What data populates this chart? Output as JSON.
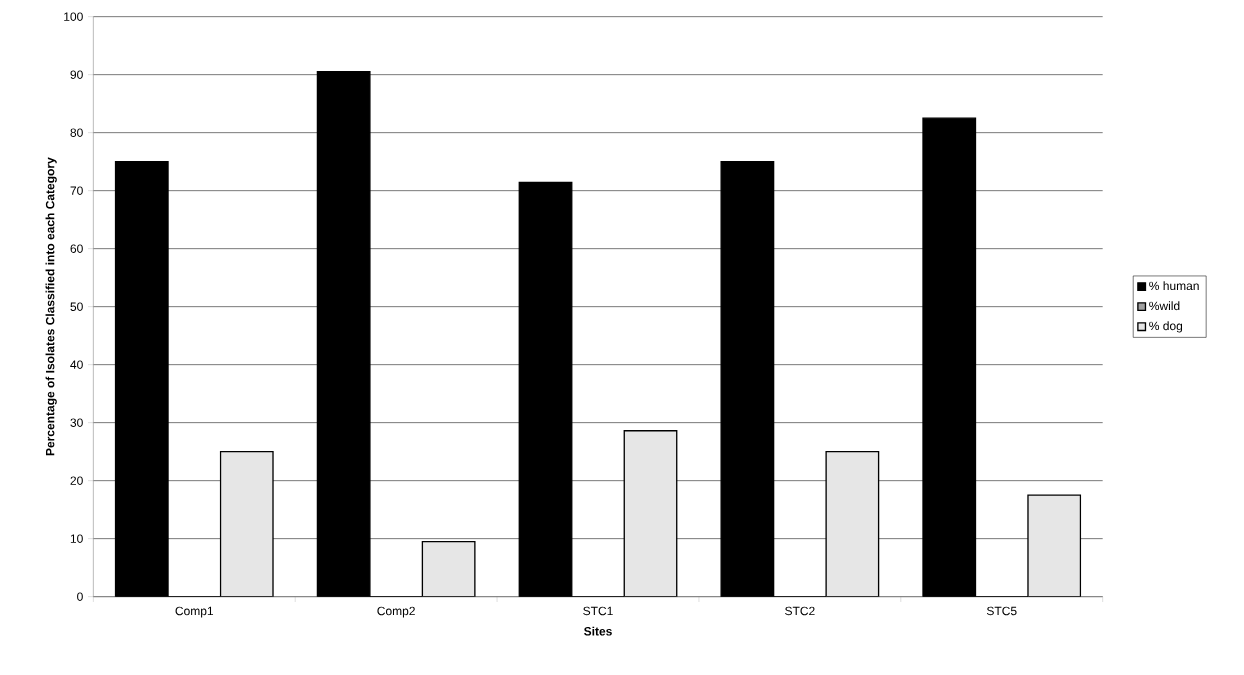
{
  "chart_data": {
    "type": "bar",
    "xlabel": "Sites",
    "ylabel": "Percentage of Isolates Classified into each Category",
    "categories": [
      "Comp1",
      "Comp2",
      "STC1",
      "STC2",
      "STC5"
    ],
    "series": [
      {
        "name": "% human",
        "color": "#000000",
        "values": [
          75,
          90.5,
          71.4,
          75,
          82.5
        ]
      },
      {
        "name": "%wild",
        "color": "#a0a0a0",
        "values": [
          0,
          0,
          0,
          0,
          0
        ]
      },
      {
        "name": "% dog",
        "color": "#e6e6e6",
        "values": [
          25,
          9.5,
          28.6,
          25,
          17.5
        ]
      }
    ],
    "ylim": [
      0,
      100
    ],
    "yticks": [
      0,
      10,
      20,
      30,
      40,
      50,
      60,
      70,
      80,
      90,
      100
    ],
    "grid": "y",
    "legend": "right"
  }
}
